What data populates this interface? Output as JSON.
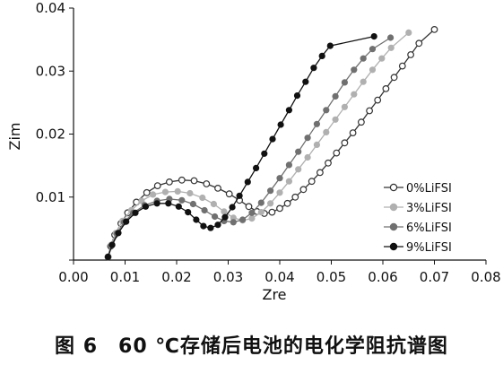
{
  "caption": "图 6　60 ℃存储后电池的电化学阻抗谱图",
  "chart_data": {
    "type": "scatter",
    "xlabel": "Zre",
    "ylabel": "Zim",
    "xlim": [
      0,
      0.08
    ],
    "ylim": [
      0,
      0.04
    ],
    "x_ticks": [
      "0.00",
      "0.01",
      "0.02",
      "0.03",
      "0.04",
      "0.05",
      "0.06",
      "0.07",
      "0.08"
    ],
    "y_ticks": [
      "0.01",
      "0.02",
      "0.03",
      "0.04"
    ],
    "grid": false,
    "legend_position": "bottom-right",
    "series": [
      {
        "name": "0%LiFSI",
        "color": "#333333",
        "marker": "open-circle",
        "points": [
          [
            0.0067,
            0.0005
          ],
          [
            0.0072,
            0.0022
          ],
          [
            0.008,
            0.004
          ],
          [
            0.0092,
            0.0058
          ],
          [
            0.0105,
            0.0075
          ],
          [
            0.0122,
            0.0092
          ],
          [
            0.0142,
            0.0107
          ],
          [
            0.0163,
            0.0118
          ],
          [
            0.0186,
            0.0124
          ],
          [
            0.021,
            0.0127
          ],
          [
            0.0234,
            0.0126
          ],
          [
            0.0258,
            0.0121
          ],
          [
            0.028,
            0.0114
          ],
          [
            0.0302,
            0.0105
          ],
          [
            0.0322,
            0.0095
          ],
          [
            0.034,
            0.0085
          ],
          [
            0.0356,
            0.0077
          ],
          [
            0.037,
            0.0074
          ],
          [
            0.0385,
            0.0076
          ],
          [
            0.04,
            0.0082
          ],
          [
            0.0415,
            0.009
          ],
          [
            0.043,
            0.01
          ],
          [
            0.0446,
            0.0112
          ],
          [
            0.0462,
            0.0125
          ],
          [
            0.0478,
            0.0139
          ],
          [
            0.0494,
            0.0154
          ],
          [
            0.051,
            0.017
          ],
          [
            0.0526,
            0.0186
          ],
          [
            0.0542,
            0.0202
          ],
          [
            0.0558,
            0.0219
          ],
          [
            0.0574,
            0.0237
          ],
          [
            0.059,
            0.0254
          ],
          [
            0.0606,
            0.0272
          ],
          [
            0.0622,
            0.029
          ],
          [
            0.0638,
            0.0308
          ],
          [
            0.0654,
            0.0326
          ],
          [
            0.067,
            0.0344
          ],
          [
            0.07,
            0.0366
          ]
        ]
      },
      {
        "name": "3%LiFSI",
        "color": "#b0b0b0",
        "marker": "filled-circle",
        "points": [
          [
            0.0067,
            0.0005
          ],
          [
            0.0073,
            0.0024
          ],
          [
            0.0082,
            0.0043
          ],
          [
            0.0095,
            0.0062
          ],
          [
            0.0112,
            0.0079
          ],
          [
            0.0132,
            0.0094
          ],
          [
            0.0154,
            0.0104
          ],
          [
            0.0178,
            0.0108
          ],
          [
            0.0202,
            0.0109
          ],
          [
            0.0226,
            0.0106
          ],
          [
            0.025,
            0.0099
          ],
          [
            0.0272,
            0.0089
          ],
          [
            0.0292,
            0.0077
          ],
          [
            0.031,
            0.0067
          ],
          [
            0.0328,
            0.0063
          ],
          [
            0.0346,
            0.0066
          ],
          [
            0.0364,
            0.0076
          ],
          [
            0.0382,
            0.009
          ],
          [
            0.04,
            0.0107
          ],
          [
            0.0418,
            0.0125
          ],
          [
            0.0436,
            0.0144
          ],
          [
            0.0454,
            0.0163
          ],
          [
            0.0472,
            0.0183
          ],
          [
            0.049,
            0.0203
          ],
          [
            0.0508,
            0.0223
          ],
          [
            0.0526,
            0.0243
          ],
          [
            0.0544,
            0.0263
          ],
          [
            0.0562,
            0.0283
          ],
          [
            0.058,
            0.0302
          ],
          [
            0.0598,
            0.032
          ],
          [
            0.0616,
            0.0337
          ],
          [
            0.065,
            0.0361
          ]
        ]
      },
      {
        "name": "6%LiFSI",
        "color": "#707070",
        "marker": "filled-circle",
        "points": [
          [
            0.0067,
            0.0005
          ],
          [
            0.0074,
            0.0023
          ],
          [
            0.0084,
            0.0042
          ],
          [
            0.0098,
            0.006
          ],
          [
            0.0116,
            0.0075
          ],
          [
            0.0138,
            0.0087
          ],
          [
            0.0162,
            0.0094
          ],
          [
            0.0186,
            0.0097
          ],
          [
            0.021,
            0.0095
          ],
          [
            0.0232,
            0.0089
          ],
          [
            0.0254,
            0.0079
          ],
          [
            0.0274,
            0.0069
          ],
          [
            0.0292,
            0.0062
          ],
          [
            0.031,
            0.006
          ],
          [
            0.0328,
            0.0064
          ],
          [
            0.0346,
            0.0075
          ],
          [
            0.0364,
            0.0091
          ],
          [
            0.0382,
            0.011
          ],
          [
            0.04,
            0.013
          ],
          [
            0.0418,
            0.0151
          ],
          [
            0.0436,
            0.0172
          ],
          [
            0.0454,
            0.0194
          ],
          [
            0.0472,
            0.0216
          ],
          [
            0.049,
            0.0238
          ],
          [
            0.0508,
            0.026
          ],
          [
            0.0526,
            0.0282
          ],
          [
            0.0544,
            0.0302
          ],
          [
            0.0562,
            0.032
          ],
          [
            0.058,
            0.0335
          ],
          [
            0.0615,
            0.0353
          ]
        ]
      },
      {
        "name": "9%LiFSI",
        "color": "#111111",
        "marker": "filled-circle",
        "points": [
          [
            0.0067,
            0.0005
          ],
          [
            0.0075,
            0.0024
          ],
          [
            0.0087,
            0.0043
          ],
          [
            0.0102,
            0.0061
          ],
          [
            0.012,
            0.0075
          ],
          [
            0.014,
            0.0085
          ],
          [
            0.0162,
            0.009
          ],
          [
            0.0184,
            0.009
          ],
          [
            0.0204,
            0.0085
          ],
          [
            0.0222,
            0.0076
          ],
          [
            0.0238,
            0.0064
          ],
          [
            0.0252,
            0.0054
          ],
          [
            0.0266,
            0.0051
          ],
          [
            0.028,
            0.0056
          ],
          [
            0.0294,
            0.0068
          ],
          [
            0.0308,
            0.0084
          ],
          [
            0.0322,
            0.0102
          ],
          [
            0.0338,
            0.0124
          ],
          [
            0.0354,
            0.0146
          ],
          [
            0.037,
            0.0169
          ],
          [
            0.0386,
            0.0192
          ],
          [
            0.0402,
            0.0215
          ],
          [
            0.0418,
            0.0238
          ],
          [
            0.0434,
            0.0261
          ],
          [
            0.045,
            0.0283
          ],
          [
            0.0466,
            0.0305
          ],
          [
            0.0482,
            0.0324
          ],
          [
            0.0498,
            0.034
          ],
          [
            0.0583,
            0.0355
          ]
        ]
      }
    ]
  }
}
